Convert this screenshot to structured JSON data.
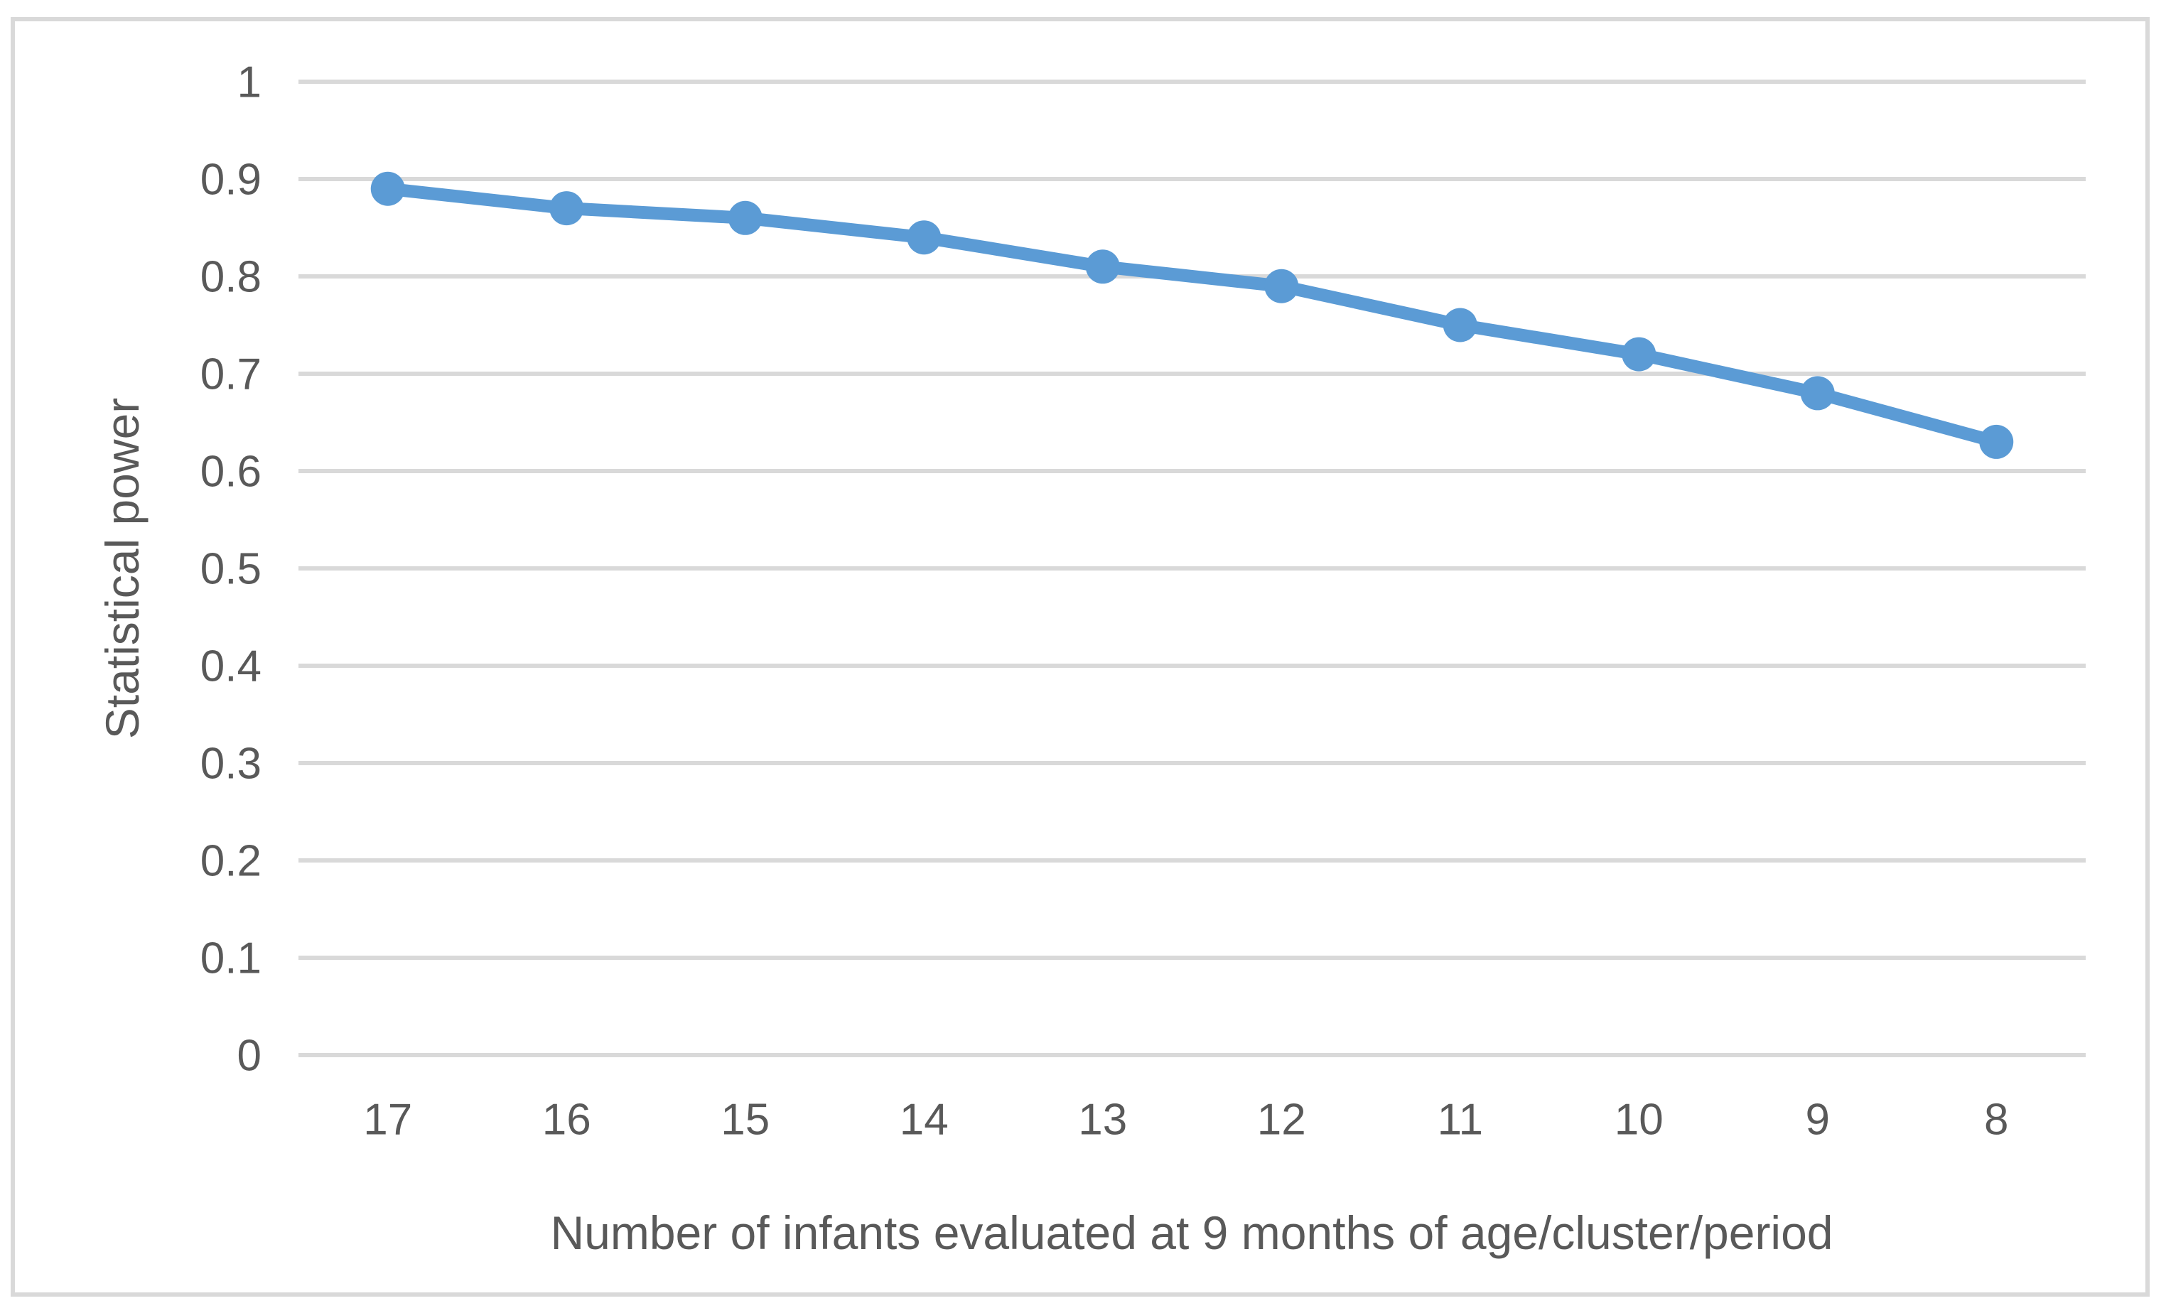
{
  "colors": {
    "series": "#5B9BD5",
    "gridline": "#D9D9D9",
    "axis_text": "#595959",
    "frame_border": "#D9D9D9",
    "background": "#FFFFFF"
  },
  "chart_data": {
    "type": "line",
    "title": "",
    "categories": [
      "17",
      "16",
      "15",
      "14",
      "13",
      "12",
      "11",
      "10",
      "9",
      "8"
    ],
    "series": [
      {
        "values": [
          0.89,
          0.87,
          0.86,
          0.84,
          0.81,
          0.79,
          0.75,
          0.72,
          0.68,
          0.63
        ]
      }
    ],
    "xlabel": "Number of infants evaluated at 9 months of age/cluster/period",
    "ylabel": "Statistical power",
    "ylim": [
      0,
      1
    ],
    "yticks": [
      0,
      0.1,
      0.2,
      0.3,
      0.4,
      0.5,
      0.6,
      0.7,
      0.8,
      0.9,
      1
    ],
    "ytick_labels": [
      "0",
      "0.1",
      "0.2",
      "0.3",
      "0.4",
      "0.5",
      "0.6",
      "0.7",
      "0.8",
      "0.9",
      "1"
    ],
    "grid": "horizontal",
    "legend": "none",
    "marker": "circle"
  }
}
